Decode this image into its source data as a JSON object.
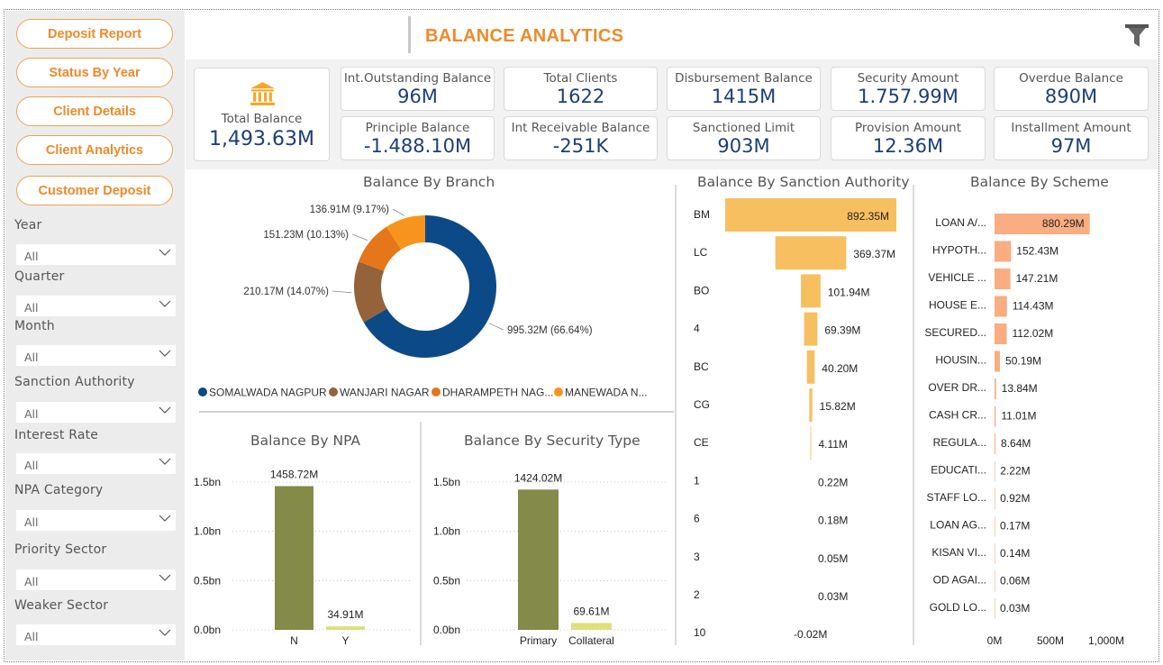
{
  "header": {
    "title": "BALANCE ANALYTICS"
  },
  "nav": [
    {
      "label": "Deposit Report"
    },
    {
      "label": "Status By Year"
    },
    {
      "label": "Client Details"
    },
    {
      "label": "Client Analytics"
    },
    {
      "label": "Customer Deposit"
    }
  ],
  "filters": [
    {
      "label": "Year",
      "value": "All"
    },
    {
      "label": "Quarter",
      "value": "All"
    },
    {
      "label": "Month",
      "value": "All"
    },
    {
      "label": "Sanction Authority",
      "value": "All"
    },
    {
      "label": "Interest Rate",
      "value": "All"
    },
    {
      "label": "NPA Category",
      "value": "All"
    },
    {
      "label": "Priority Sector",
      "value": "All"
    },
    {
      "label": "Weaker Sector",
      "value": "All"
    }
  ],
  "kpis": {
    "total_balance": {
      "label": "Total Balance",
      "value": "1,493.63M",
      "icon": "bank-icon",
      "icon_color": "#f5a623"
    },
    "cards": [
      {
        "label": "Int.Outstanding Balance",
        "value": "96M"
      },
      {
        "label": "Total Clients",
        "value": "1622"
      },
      {
        "label": "Disbursement Balance",
        "value": "1415M"
      },
      {
        "label": "Security Amount",
        "value": "1.757.99M"
      },
      {
        "label": "Overdue Balance",
        "value": "890M"
      },
      {
        "label": "Principle Balance",
        "value": "-1.488.10M"
      },
      {
        "label": "Int Receivable Balance",
        "value": "-251K"
      },
      {
        "label": "Sanctioned Limit",
        "value": "903M"
      },
      {
        "label": "Provision Amount",
        "value": "12.36M"
      },
      {
        "label": "Installment Amount",
        "value": "97M"
      }
    ]
  },
  "colors": {
    "accent": "#ee8a2a",
    "kpi_value": "#1c3f77",
    "olive": "#848a48",
    "light_green": "#dde07a",
    "sanction_bar": "#f7bf60",
    "scheme_bar": "#f9ad80"
  },
  "chart_data": [
    {
      "type": "pie",
      "title": "Balance By Branch",
      "labels": [
        "SOMALWADA NAGPUR",
        "WANJARI NAGAR",
        "DHARAMPETH NAG...",
        "MANEWADA N..."
      ],
      "values": [
        995.32,
        210.17,
        151.23,
        136.91
      ],
      "data_labels": [
        "995.32M (66.64%)",
        "210.17M (14.07%)",
        "151.23M (10.13%)",
        "136.91M (9.17%)"
      ],
      "colors": [
        "#0c4a87",
        "#946339",
        "#e5761a",
        "#f7941d"
      ],
      "legend": "bottom"
    },
    {
      "type": "bar",
      "title": "Balance By Sanction Authority",
      "categories": [
        "BM",
        "LC",
        "BO",
        "4",
        "BC",
        "CG",
        "CE",
        "1",
        "6",
        "3",
        "2",
        "10"
      ],
      "values": [
        892.35,
        369.37,
        101.94,
        69.39,
        40.2,
        15.82,
        4.11,
        0.22,
        0.18,
        0.05,
        0.03,
        -0.02
      ],
      "data_labels": [
        "892.35M",
        "369.37M",
        "101.94M",
        "69.39M",
        "40.20M",
        "15.82M",
        "4.11M",
        "0.22M",
        "0.18M",
        "0.05M",
        "0.03M",
        "-0.02M"
      ]
    },
    {
      "type": "bar",
      "title": "Balance By Scheme",
      "categories": [
        "LOAN A/...",
        "HYPOTH...",
        "VEHICLE ...",
        "HOUSE E...",
        "SECURED...",
        "HOUSIN...",
        "OVER DR...",
        "CASH CR...",
        "REGULA...",
        "EDUCATI...",
        "STAFF LO...",
        "LOAN AG...",
        "KISAN VI...",
        "OD AGAI...",
        "GOLD LO..."
      ],
      "values": [
        880.29,
        152.43,
        147.21,
        114.43,
        112.02,
        50.19,
        13.84,
        11.01,
        8.64,
        2.22,
        0.92,
        0.17,
        0.14,
        0.06,
        0.03
      ],
      "data_labels": [
        "880.29M",
        "152.43M",
        "147.21M",
        "114.43M",
        "112.02M",
        "50.19M",
        "13.84M",
        "11.01M",
        "8.64M",
        "2.22M",
        "0.92M",
        "0.17M",
        "0.14M",
        "0.06M",
        "0.03M"
      ],
      "x_ticks": [
        "0M",
        "500M",
        "1,000M"
      ],
      "xlim": [
        0,
        1000
      ]
    },
    {
      "type": "bar",
      "title": "Balance By NPA",
      "categories": [
        "N",
        "Y"
      ],
      "values": [
        1458.72,
        34.91
      ],
      "data_labels": [
        "1458.72M",
        "34.91M"
      ],
      "y_ticks": [
        "1.5bn",
        "1.0bn",
        "0.5bn",
        "0.0bn"
      ],
      "ylim": [
        0,
        1500
      ]
    },
    {
      "type": "bar",
      "title": "Balance By Security Type",
      "categories": [
        "Primary",
        "Collateral"
      ],
      "values": [
        1424.02,
        69.61
      ],
      "data_labels": [
        "1424.02M",
        "69.61M"
      ],
      "y_ticks": [
        "1.5bn",
        "1.0bn",
        "0.5bn",
        "0.0bn"
      ],
      "ylim": [
        0,
        1500
      ]
    }
  ]
}
